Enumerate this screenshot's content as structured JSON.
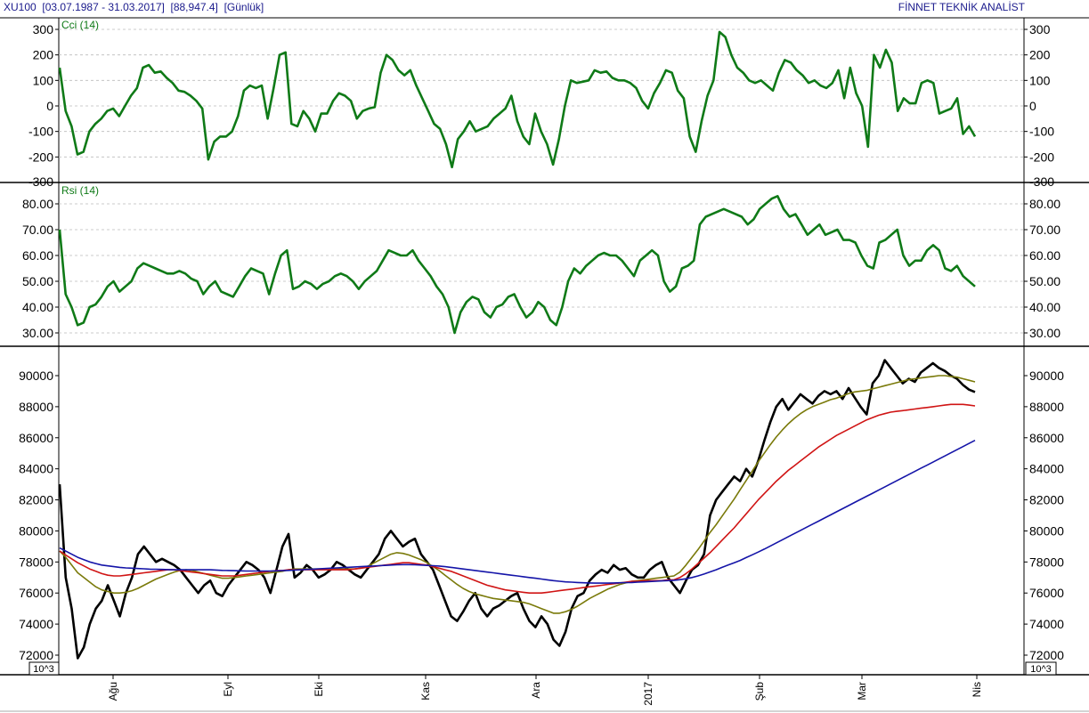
{
  "header": {
    "symbol": "XU100",
    "date_range": "[03.07.1987 - 31.03.2017]",
    "last_value": "[88,947.4]",
    "period": "[Günlük]",
    "brand": "FİNNET TEKNİK ANALİST"
  },
  "x_axis": {
    "month_labels": [
      "Ağu",
      "Eyl",
      "Eki",
      "Kas",
      "Ara",
      "2017",
      "Şub",
      "Mar",
      "Nis"
    ]
  },
  "chart_data": [
    {
      "type": "line",
      "title": "Cci (14)",
      "ylim": [
        -300,
        320
      ],
      "yticks": [
        "300",
        "200",
        "100",
        "0",
        "-100",
        "-200",
        "-300"
      ],
      "grid": true,
      "color": "#0f7a17",
      "series": [
        {
          "name": "Cci (14)",
          "values": [
            150,
            -20,
            -80,
            -190,
            -180,
            -100,
            -70,
            -50,
            -20,
            -10,
            -40,
            0,
            40,
            70,
            150,
            160,
            130,
            135,
            110,
            90,
            60,
            55,
            40,
            20,
            -10,
            -210,
            -140,
            -120,
            -120,
            -100,
            -40,
            60,
            80,
            70,
            80,
            -50,
            70,
            200,
            210,
            -70,
            -80,
            -20,
            -50,
            -100,
            -30,
            -30,
            20,
            50,
            40,
            20,
            -50,
            -20,
            -10,
            -5,
            130,
            200,
            180,
            140,
            120,
            140,
            80,
            30,
            -20,
            -70,
            -90,
            -150,
            -240,
            -130,
            -100,
            -60,
            -100,
            -90,
            -80,
            -50,
            -30,
            -10,
            40,
            -60,
            -120,
            -150,
            -30,
            -100,
            -150,
            -230,
            -130,
            0,
            100,
            90,
            95,
            100,
            140,
            130,
            135,
            110,
            100,
            100,
            90,
            70,
            20,
            -10,
            50,
            90,
            140,
            130,
            60,
            30,
            -120,
            -180,
            -60,
            40,
            100,
            290,
            270,
            200,
            150,
            130,
            100,
            90,
            100,
            80,
            60,
            130,
            180,
            170,
            140,
            120,
            90,
            100,
            80,
            70,
            90,
            140,
            30,
            150,
            50,
            0,
            -160,
            200,
            150,
            220,
            170,
            -20,
            30,
            10,
            10,
            90,
            100,
            90,
            -30,
            -20,
            -10,
            30,
            -110,
            -80,
            -120
          ]
        }
      ]
    },
    {
      "type": "line",
      "title": "Rsi (14)",
      "ylim": [
        25,
        85
      ],
      "yticks": [
        "80.00",
        "70.00",
        "60.00",
        "50.00",
        "40.00",
        "30.00"
      ],
      "grid": true,
      "color": "#0f7a17",
      "series": [
        {
          "name": "Rsi (14)",
          "values": [
            70,
            45,
            40,
            33,
            34,
            40,
            41,
            44,
            48,
            50,
            46,
            48,
            50,
            55,
            57,
            56,
            55,
            54,
            53,
            53,
            54,
            53,
            51,
            50,
            45,
            48,
            50,
            46,
            45,
            44,
            48,
            52,
            55,
            54,
            53,
            45,
            53,
            60,
            62,
            47,
            48,
            50,
            49,
            47,
            49,
            50,
            52,
            53,
            52,
            50,
            47,
            50,
            52,
            54,
            58,
            62,
            61,
            60,
            60,
            62,
            58,
            55,
            52,
            48,
            45,
            40,
            30,
            38,
            42,
            44,
            43,
            38,
            36,
            40,
            41,
            44,
            45,
            40,
            36,
            38,
            42,
            40,
            35,
            33,
            40,
            50,
            55,
            53,
            56,
            58,
            60,
            61,
            60,
            60,
            58,
            55,
            52,
            58,
            60,
            62,
            60,
            50,
            46,
            48,
            55,
            56,
            58,
            72,
            75,
            76,
            77,
            78,
            77,
            76,
            75,
            72,
            74,
            78,
            80,
            82,
            83,
            78,
            75,
            76,
            72,
            68,
            70,
            72,
            68,
            69,
            70,
            66,
            66,
            65,
            60,
            56,
            55,
            65,
            66,
            68,
            70,
            60,
            56,
            58,
            58,
            62,
            64,
            62,
            55,
            54,
            56,
            52,
            50,
            48
          ]
        }
      ]
    },
    {
      "type": "line",
      "title": "",
      "ylim": [
        71000,
        92000
      ],
      "yticks": [
        "90000",
        "88000",
        "86000",
        "84000",
        "82000",
        "80000",
        "78000",
        "76000",
        "74000",
        "72000"
      ],
      "unit_box": "10^3",
      "grid": false,
      "series": [
        {
          "name": "",
          "color": "#000000",
          "values": [
            83000,
            77000,
            75000,
            71800,
            72500,
            74000,
            75000,
            75500,
            76500,
            75500,
            74500,
            76000,
            77000,
            78500,
            79000,
            78500,
            78000,
            78200,
            78000,
            77800,
            77500,
            77000,
            76500,
            76000,
            76500,
            76800,
            76000,
            75800,
            76500,
            77000,
            77500,
            78000,
            77800,
            77500,
            77000,
            76000,
            77500,
            79000,
            79800,
            77000,
            77300,
            77800,
            77500,
            77000,
            77200,
            77500,
            78000,
            77800,
            77500,
            77200,
            77000,
            77500,
            78000,
            78500,
            79500,
            80000,
            79500,
            79000,
            79300,
            79500,
            78500,
            78000,
            77500,
            76500,
            75500,
            74500,
            74200,
            74800,
            75500,
            76000,
            75000,
            74500,
            75000,
            75200,
            75500,
            75800,
            76000,
            75000,
            74200,
            73800,
            74500,
            74000,
            73000,
            72600,
            73500,
            75000,
            75800,
            76000,
            76800,
            77200,
            77500,
            77300,
            77800,
            77500,
            77600,
            77200,
            77000,
            77000,
            77500,
            77800,
            78000,
            77000,
            76500,
            76000,
            76800,
            77500,
            77800,
            78500,
            81000,
            82000,
            82500,
            83000,
            83500,
            83200,
            84000,
            83500,
            84500,
            85800,
            87000,
            88000,
            88500,
            87800,
            88300,
            88800,
            88500,
            88200,
            88700,
            89000,
            88800,
            89000,
            88500,
            89200,
            88600,
            88000,
            87500,
            89500,
            90000,
            91000,
            90500,
            90000,
            89500,
            89800,
            89600,
            90200,
            90500,
            90800,
            90500,
            90300,
            90000,
            89800,
            89400,
            89100,
            88947
          ]
        },
        {
          "name": "",
          "color": "#7a7a0a",
          "values": [
            78700,
            78300,
            77800,
            77300,
            77000,
            76700,
            76400,
            76200,
            76100,
            76000,
            76000,
            76050,
            76150,
            76300,
            76500,
            76700,
            76900,
            77050,
            77200,
            77350,
            77450,
            77500,
            77450,
            77350,
            77250,
            77150,
            77050,
            76950,
            76950,
            77000,
            77050,
            77100,
            77150,
            77200,
            77250,
            77300,
            77350,
            77400,
            77500,
            77550,
            77550,
            77550,
            77550,
            77550,
            77550,
            77550,
            77550,
            77550,
            77550,
            77550,
            77600,
            77700,
            77900,
            78100,
            78300,
            78500,
            78600,
            78550,
            78450,
            78300,
            78150,
            77950,
            77700,
            77450,
            77150,
            76850,
            76550,
            76300,
            76100,
            75950,
            75850,
            75750,
            75650,
            75600,
            75550,
            75500,
            75450,
            75400,
            75300,
            75150,
            75000,
            74850,
            74700,
            74700,
            74800,
            74950,
            75150,
            75400,
            75650,
            75850,
            76050,
            76250,
            76400,
            76550,
            76650,
            76750,
            76800,
            76850,
            76900,
            76950,
            77000,
            77050,
            77100,
            77350,
            77800,
            78300,
            78800,
            79350,
            79900,
            80400,
            80950,
            81500,
            82050,
            82650,
            83250,
            83850,
            84450,
            85000,
            85550,
            86050,
            86500,
            86900,
            87250,
            87550,
            87800,
            88000,
            88150,
            88300,
            88450,
            88550,
            88700,
            88850,
            88950,
            89000,
            89050,
            89150,
            89250,
            89350,
            89450,
            89550,
            89650,
            89750,
            89800,
            89850,
            89900,
            89950,
            90000,
            90000,
            89950,
            89900,
            89800,
            89700,
            89600
          ]
        },
        {
          "name": "",
          "color": "#d01414",
          "values": [
            78700,
            78450,
            78200,
            77950,
            77750,
            77550,
            77400,
            77250,
            77150,
            77100,
            77100,
            77150,
            77200,
            77250,
            77300,
            77350,
            77400,
            77450,
            77500,
            77500,
            77450,
            77400,
            77350,
            77300,
            77250,
            77200,
            77150,
            77100,
            77100,
            77100,
            77150,
            77200,
            77250,
            77300,
            77350,
            77400,
            77450,
            77450,
            77500,
            77500,
            77500,
            77500,
            77500,
            77500,
            77500,
            77500,
            77500,
            77500,
            77500,
            77550,
            77600,
            77650,
            77700,
            77750,
            77800,
            77850,
            77900,
            77950,
            77950,
            77900,
            77850,
            77800,
            77700,
            77600,
            77500,
            77400,
            77250,
            77100,
            76950,
            76800,
            76650,
            76500,
            76400,
            76300,
            76200,
            76150,
            76100,
            76050,
            76000,
            76000,
            76000,
            76050,
            76100,
            76150,
            76200,
            76250,
            76300,
            76350,
            76400,
            76450,
            76500,
            76550,
            76600,
            76650,
            76700,
            76750,
            76750,
            76800,
            76800,
            76800,
            76800,
            76850,
            76850,
            77000,
            77250,
            77550,
            77900,
            78250,
            78600,
            79000,
            79400,
            79800,
            80200,
            80650,
            81100,
            81550,
            82000,
            82400,
            82800,
            83200,
            83550,
            83900,
            84200,
            84500,
            84800,
            85100,
            85400,
            85650,
            85900,
            86150,
            86350,
            86550,
            86750,
            86950,
            87150,
            87300,
            87450,
            87550,
            87650,
            87700,
            87750,
            87800,
            87850,
            87900,
            87950,
            88000,
            88050,
            88100,
            88150,
            88150,
            88150,
            88100,
            88050
          ]
        },
        {
          "name": "",
          "color": "#1414a8",
          "values": [
            78900,
            78700,
            78500,
            78300,
            78150,
            78000,
            77900,
            77800,
            77750,
            77700,
            77650,
            77620,
            77600,
            77580,
            77560,
            77540,
            77530,
            77520,
            77510,
            77500,
            77500,
            77500,
            77500,
            77500,
            77500,
            77500,
            77480,
            77460,
            77450,
            77440,
            77430,
            77420,
            77420,
            77420,
            77420,
            77420,
            77430,
            77440,
            77460,
            77480,
            77500,
            77520,
            77540,
            77560,
            77580,
            77600,
            77620,
            77640,
            77660,
            77680,
            77700,
            77720,
            77740,
            77760,
            77780,
            77800,
            77820,
            77830,
            77830,
            77820,
            77800,
            77780,
            77760,
            77740,
            77700,
            77650,
            77600,
            77550,
            77500,
            77450,
            77400,
            77350,
            77300,
            77250,
            77200,
            77150,
            77100,
            77050,
            77000,
            76950,
            76900,
            76850,
            76800,
            76760,
            76720,
            76700,
            76680,
            76660,
            76650,
            76640,
            76640,
            76640,
            76650,
            76660,
            76670,
            76680,
            76700,
            76720,
            76740,
            76760,
            76780,
            76800,
            76820,
            76860,
            76920,
            77000,
            77100,
            77220,
            77360,
            77500,
            77650,
            77800,
            77950,
            78100,
            78280,
            78460,
            78640,
            78830,
            79030,
            79230,
            79430,
            79630,
            79830,
            80030,
            80230,
            80430,
            80630,
            80830,
            81030,
            81230,
            81430,
            81630,
            81830,
            82030,
            82230,
            82430,
            82630,
            82830,
            83030,
            83230,
            83430,
            83630,
            83830,
            84030,
            84230,
            84430,
            84630,
            84830,
            85030,
            85230,
            85430,
            85630,
            85830
          ]
        }
      ]
    }
  ]
}
